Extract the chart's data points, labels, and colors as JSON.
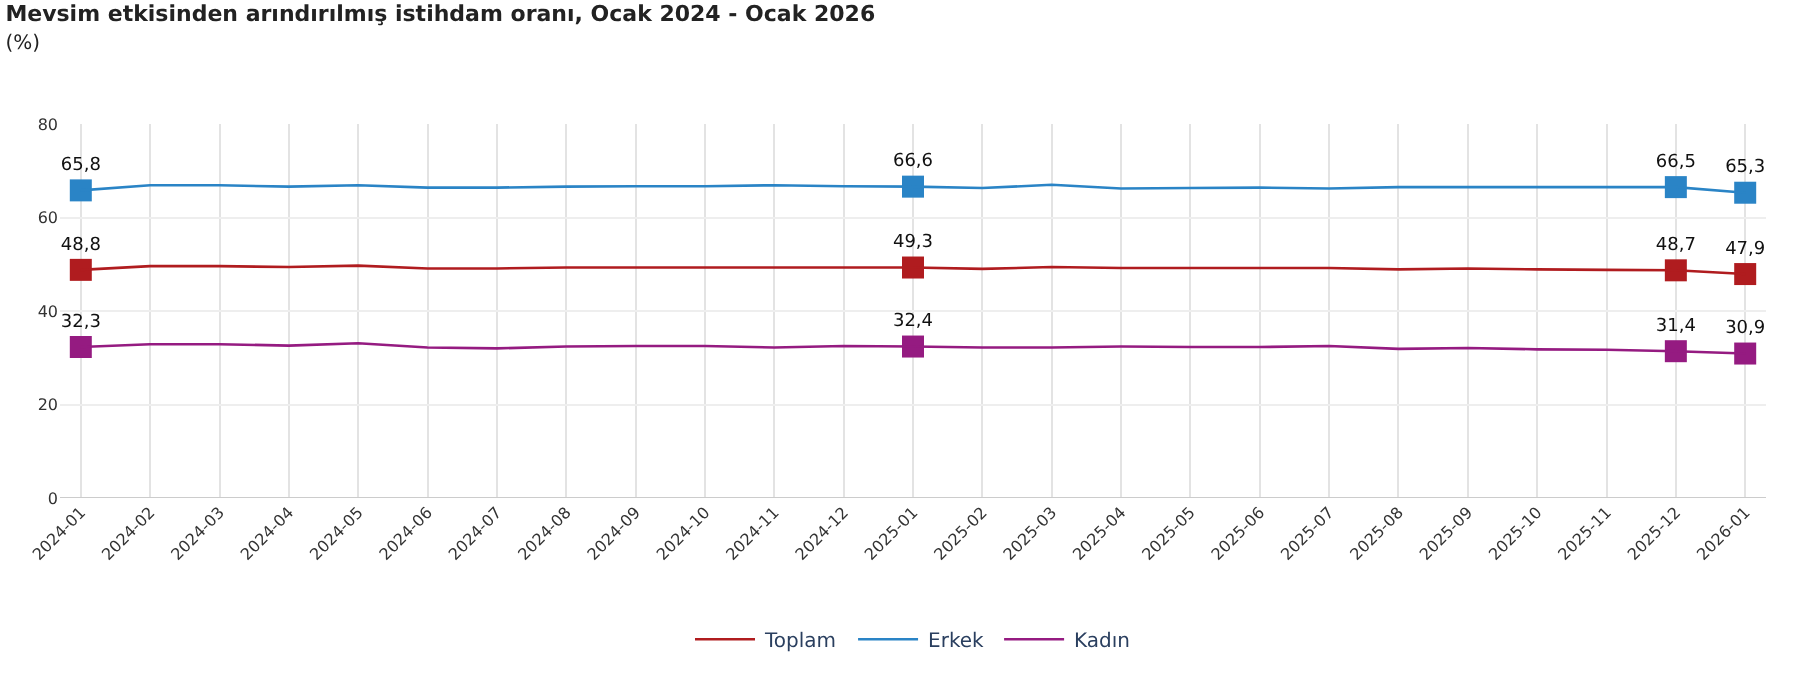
{
  "chart_data": {
    "type": "line",
    "title": "Mevsim etkisinden arındırılmış istihdam oranı, Ocak 2024 - Ocak 2026",
    "subtitle": "(%)",
    "categories": [
      "2024-01",
      "2024-02",
      "2024-03",
      "2024-04",
      "2024-05",
      "2024-06",
      "2024-07",
      "2024-08",
      "2024-09",
      "2024-10",
      "2024-11",
      "2024-12",
      "2025-01",
      "2025-02",
      "2025-03",
      "2025-04",
      "2025-05",
      "2025-06",
      "2025-07",
      "2025-08",
      "2025-09",
      "2025-10",
      "2025-11",
      "2025-12",
      "2026-01"
    ],
    "series": [
      {
        "name": "Toplam",
        "color": "#b01c1f",
        "values": [
          48.8,
          49.6,
          49.6,
          49.4,
          49.7,
          49.1,
          49.1,
          49.3,
          49.3,
          49.3,
          49.3,
          49.3,
          49.3,
          49.0,
          49.4,
          49.2,
          49.2,
          49.2,
          49.2,
          48.9,
          49.1,
          48.9,
          48.8,
          48.7,
          47.9
        ],
        "value_labels": [
          "48,8",
          null,
          null,
          null,
          null,
          null,
          null,
          null,
          null,
          null,
          null,
          null,
          "49,3",
          null,
          null,
          null,
          null,
          null,
          null,
          null,
          null,
          null,
          null,
          "48,7",
          "47,9"
        ]
      },
      {
        "name": "Erkek",
        "color": "#2a84c6",
        "values": [
          65.8,
          66.9,
          66.9,
          66.6,
          66.9,
          66.4,
          66.4,
          66.6,
          66.7,
          66.7,
          66.9,
          66.7,
          66.6,
          66.3,
          67.0,
          66.2,
          66.3,
          66.4,
          66.2,
          66.5,
          66.5,
          66.5,
          66.5,
          66.5,
          65.3
        ],
        "value_labels": [
          "65,8",
          null,
          null,
          null,
          null,
          null,
          null,
          null,
          null,
          null,
          null,
          null,
          "66,6",
          null,
          null,
          null,
          null,
          null,
          null,
          null,
          null,
          null,
          null,
          "66,5",
          "65,3"
        ]
      },
      {
        "name": "Kadın",
        "color": "#951b81",
        "values": [
          32.3,
          32.9,
          32.9,
          32.6,
          33.1,
          32.2,
          32.0,
          32.4,
          32.5,
          32.5,
          32.2,
          32.5,
          32.4,
          32.2,
          32.2,
          32.4,
          32.3,
          32.3,
          32.5,
          31.9,
          32.1,
          31.8,
          31.7,
          31.4,
          30.9
        ],
        "value_labels": [
          "32,3",
          null,
          null,
          null,
          null,
          null,
          null,
          null,
          null,
          null,
          null,
          null,
          "32,4",
          null,
          null,
          null,
          null,
          null,
          null,
          null,
          null,
          null,
          null,
          "31,4",
          "30,9"
        ]
      }
    ],
    "ylim": [
      0,
      80
    ],
    "yticks": [
      0,
      20,
      40,
      60,
      80
    ],
    "grid": true,
    "legend": "bottom",
    "line_style": "solid"
  }
}
